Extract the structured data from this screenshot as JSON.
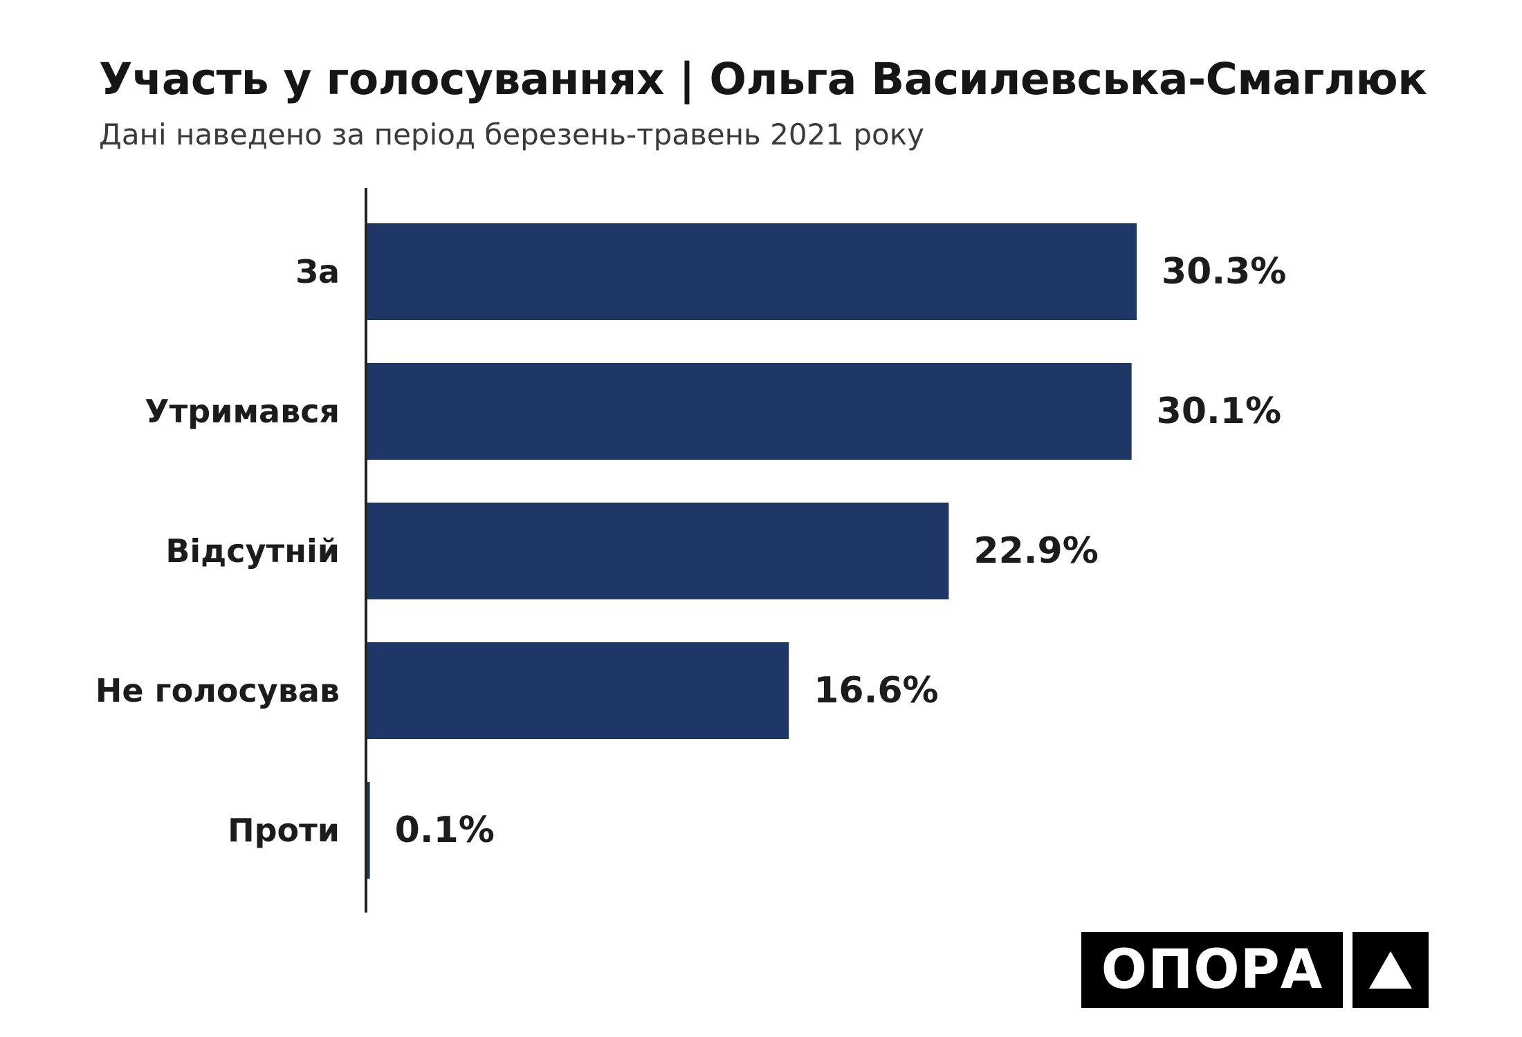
{
  "header": {
    "title": "Участь у голосуваннях | Ольга Василевська-Смаглюк",
    "subtitle": "Дані наведено за період березень-травень 2021 року"
  },
  "chart_data": {
    "type": "bar",
    "orientation": "horizontal",
    "categories": [
      "За",
      "Утримався",
      "Відсутній",
      "Не голосував",
      "Проти"
    ],
    "values": [
      30.3,
      30.1,
      22.9,
      16.6,
      0.1
    ],
    "value_labels": [
      "30.3%",
      "30.1%",
      "22.9%",
      "16.6%",
      "0.1%"
    ],
    "unit": "%",
    "title": "Участь у голосуваннях | Ольга Василевська-Смаглюк",
    "subtitle": "Дані наведено за період березень-травень 2021 року",
    "xlabel": "",
    "ylabel": "",
    "xlim": [
      0,
      40
    ],
    "grid": false,
    "legend": "none",
    "bar_color": "#1f3766"
  },
  "logo": {
    "text": "ОПОРА",
    "mark_icon": "triangle-icon"
  },
  "colors": {
    "bar": "#1f3766",
    "axis": "#222222",
    "text": "#1c1c1c",
    "logo_bg": "#000000",
    "logo_fg": "#ffffff"
  }
}
